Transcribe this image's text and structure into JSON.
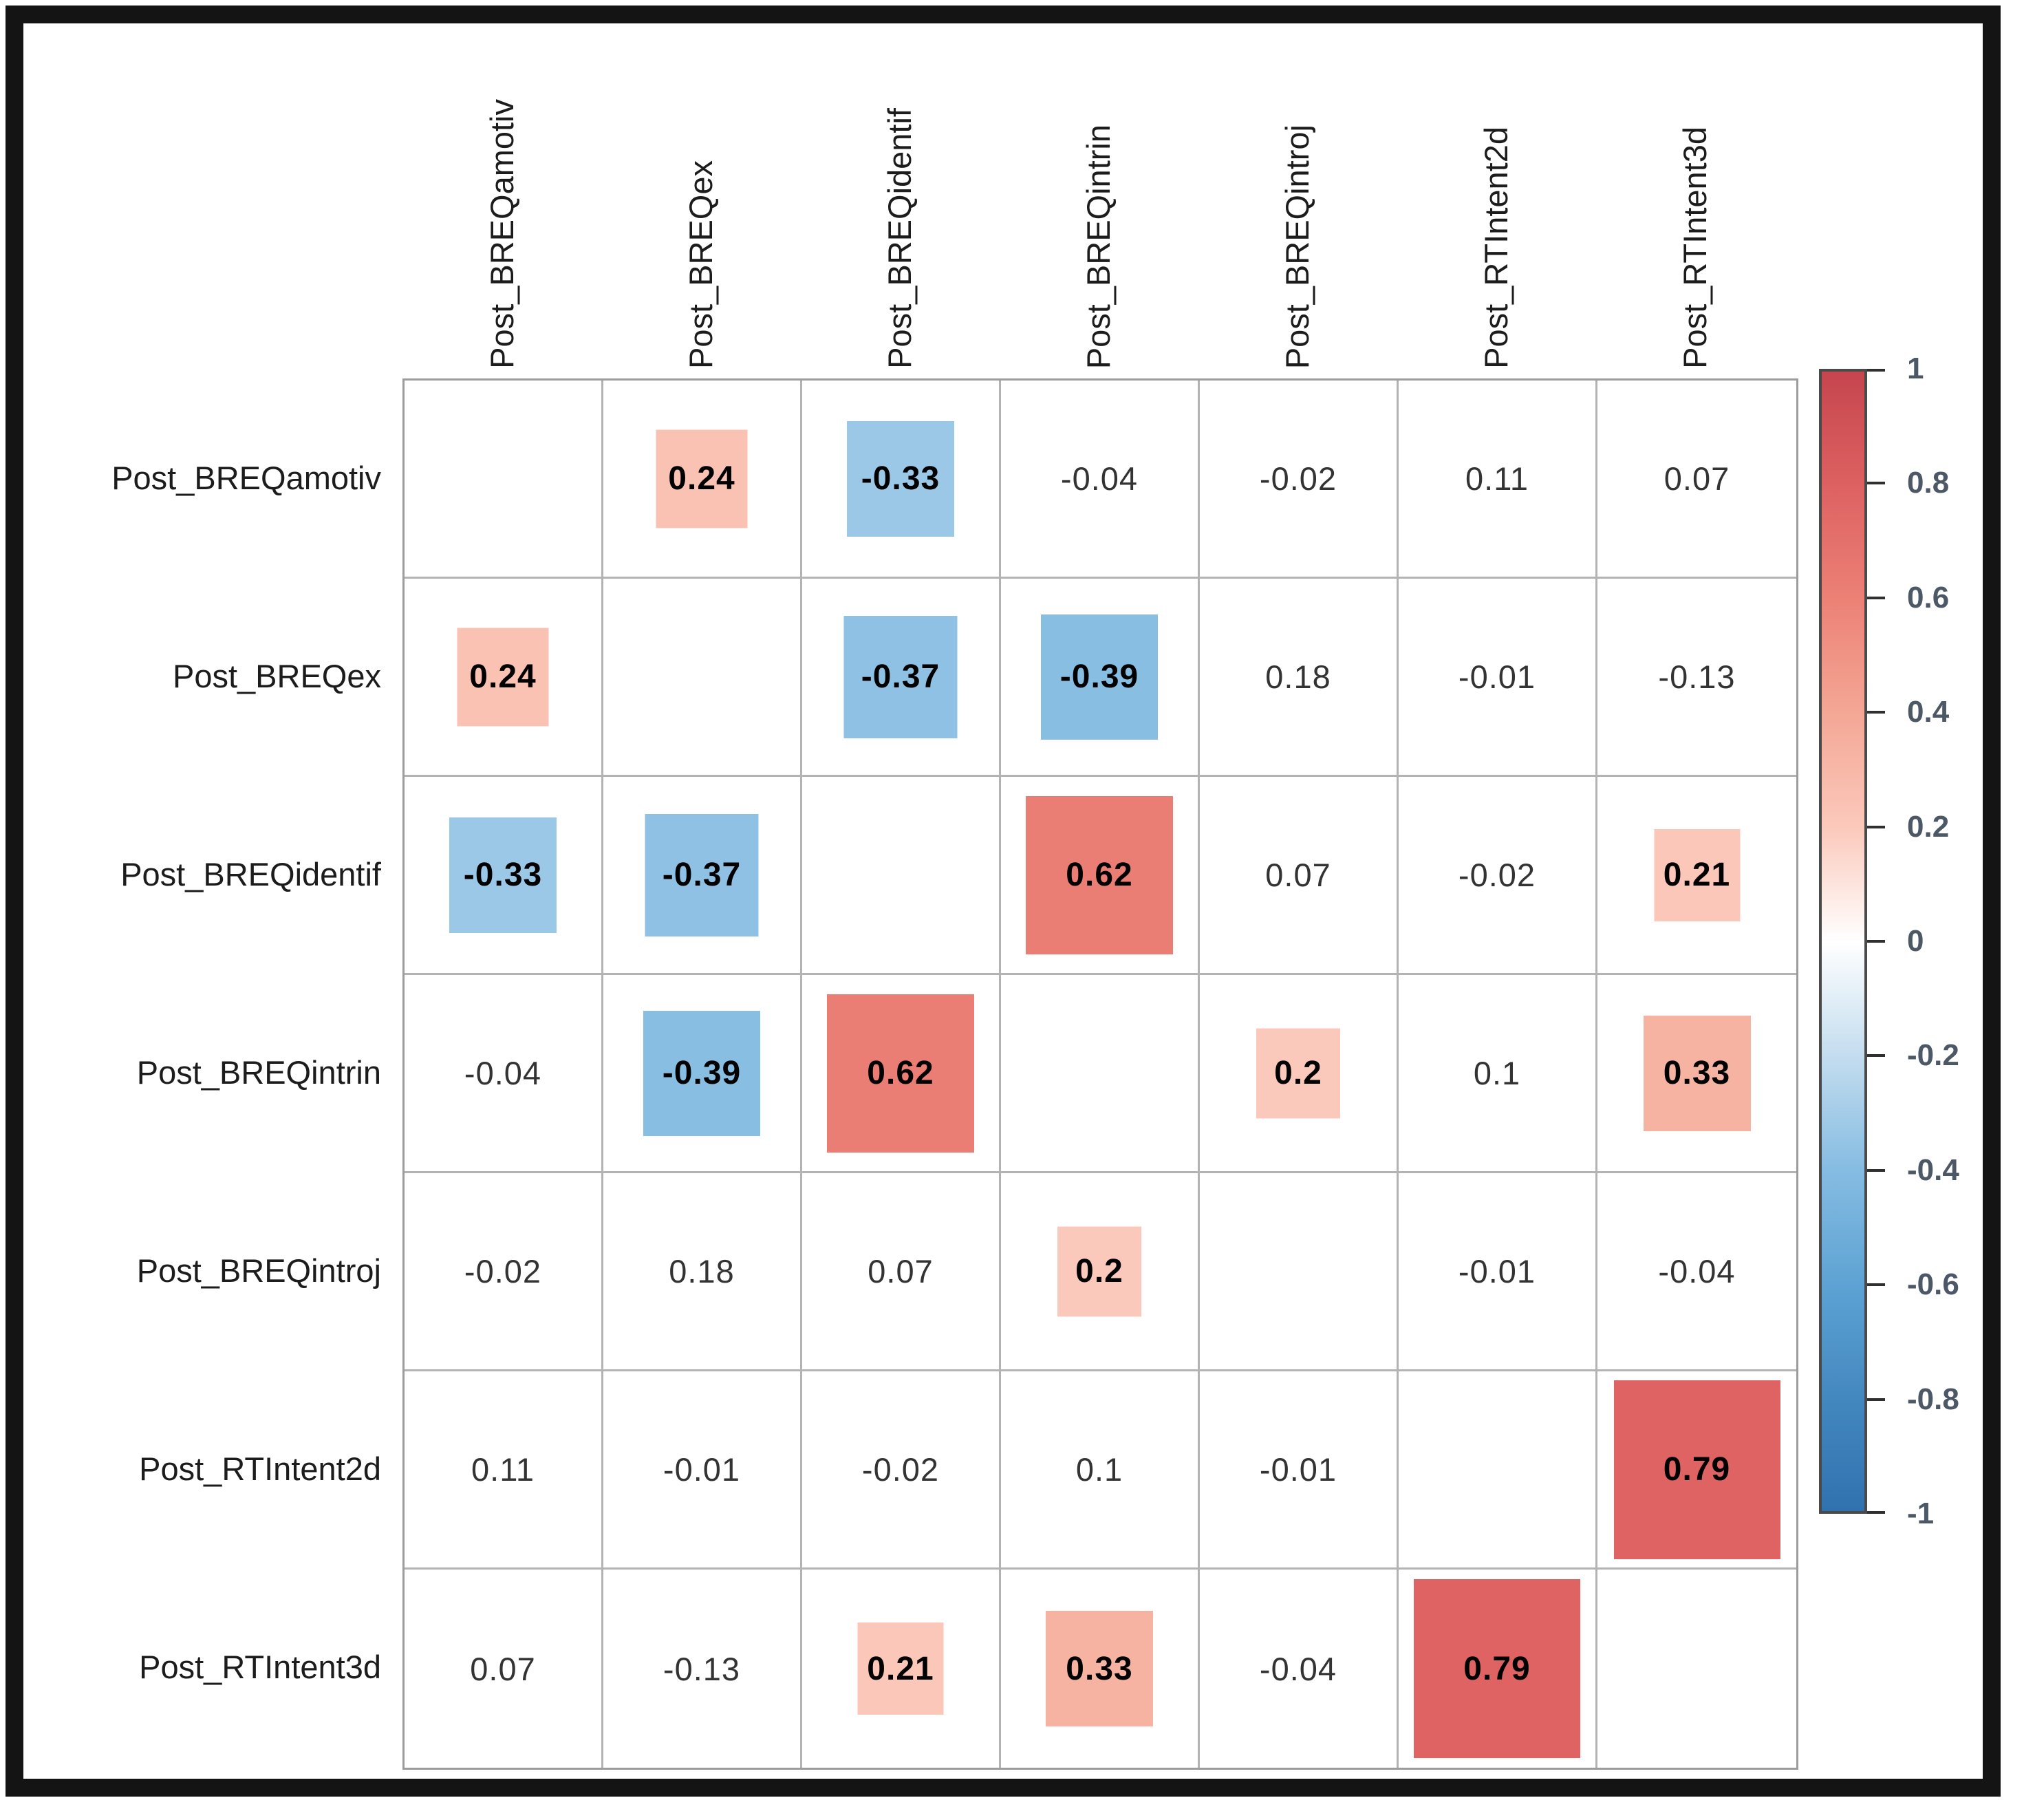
{
  "chart_data": {
    "type": "heatmap",
    "subtype": "correlation-matrix",
    "title": "",
    "variables": [
      "Post_BREQamotiv",
      "Post_BREQex",
      "Post_BREQidentif",
      "Post_BREQintrin",
      "Post_BREQintroj",
      "Post_RTIntent2d",
      "Post_RTIntent3d"
    ],
    "matrix": [
      [
        null,
        0.24,
        -0.33,
        -0.04,
        -0.02,
        0.11,
        0.07
      ],
      [
        0.24,
        null,
        -0.37,
        -0.39,
        0.18,
        -0.01,
        -0.13
      ],
      [
        -0.33,
        -0.37,
        null,
        0.62,
        0.07,
        -0.02,
        0.21
      ],
      [
        -0.04,
        -0.39,
        0.62,
        null,
        0.2,
        0.1,
        0.33
      ],
      [
        -0.02,
        0.18,
        0.07,
        0.2,
        null,
        -0.01,
        -0.04
      ],
      [
        0.11,
        -0.01,
        -0.02,
        0.1,
        -0.01,
        null,
        0.79
      ],
      [
        0.07,
        -0.13,
        0.21,
        0.33,
        -0.04,
        0.79,
        null
      ]
    ],
    "highlight_box_min_abs_r": 0.2,
    "colorbar": {
      "tick_labels": [
        "1",
        "0.8",
        "0.6",
        "0.4",
        "0.2",
        "0",
        "-0.2",
        "-0.4",
        "-0.6",
        "-0.8",
        "-1"
      ],
      "range_top": 1,
      "range_bottom": -1,
      "position": "right"
    },
    "palette": [
      {
        "value": 1,
        "color": "#c6454e"
      },
      {
        "value": 0.8,
        "color": "#dd6161"
      },
      {
        "value": 0.6,
        "color": "#ec8176"
      },
      {
        "value": 0.4,
        "color": "#f4a795"
      },
      {
        "value": 0.2,
        "color": "#fbc9bb"
      },
      {
        "value": 0,
        "color": "#ffffff"
      },
      {
        "value": -0.2,
        "color": "#c4ddef"
      },
      {
        "value": -0.4,
        "color": "#86bce2"
      },
      {
        "value": -0.6,
        "color": "#5ea3d4"
      },
      {
        "value": -0.8,
        "color": "#4488c0"
      },
      {
        "value": -1,
        "color": "#3072ae"
      }
    ],
    "layout_hints": {
      "grid": true,
      "diagonal": "blank",
      "square_size_scales_with_abs_r": true
    }
  }
}
